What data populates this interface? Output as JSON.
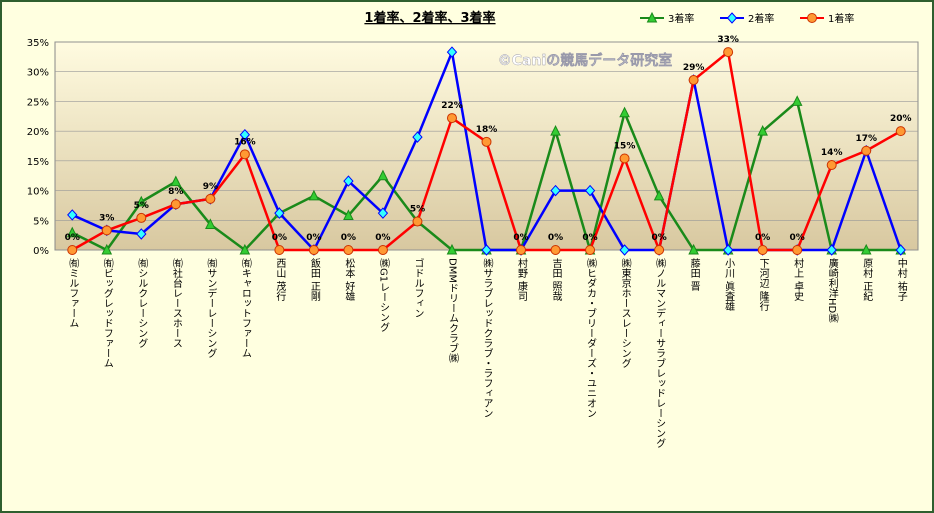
{
  "chart_data": {
    "type": "line",
    "title": "1着率、2着率、3着率",
    "annotation": "©Caniの競馬データ研究室",
    "categories": [
      "㈲ミルファーム",
      "㈲ビッグレッドファーム",
      "㈲シルクレーシング",
      "㈲社台レースホース",
      "㈲サンデーレーシング",
      "㈲キャロットファーム",
      "西山 茂行",
      "飯田 正剛",
      "松本 好雄",
      "㈱G1レーシング",
      "ゴドルフィン",
      "DMMドリームクラブ㈱",
      "㈱サラブレッドクラブ・ラフィアン",
      "村野 康司",
      "吉田 照哉",
      "㈱ヒダカ・ブリーダーズ・ユニオン",
      "㈱東京ホースレーシング",
      "㈱ノルマンディーサラブレッドレーシング",
      "藤田 晋",
      "小川 眞査雄",
      "下河辺 隆行",
      "村上 卓史",
      "廣崎利洋HD㈱",
      "原村 正紀",
      "中村 祐子"
    ],
    "series": [
      {
        "name": "3着率",
        "color": "#1a8a1a",
        "marker": "triangle",
        "values": [
          2.9,
          0,
          8.1,
          11.5,
          4.3,
          0,
          6.2,
          9.1,
          5.8,
          12.5,
          4.8,
          0,
          0,
          0,
          20,
          0,
          23.1,
          9.1,
          0,
          0,
          20,
          25,
          0,
          0,
          0
        ]
      },
      {
        "name": "2着率",
        "color": "#0000ff",
        "marker": "diamond",
        "values": [
          5.9,
          3.3,
          2.7,
          7.7,
          8.6,
          19.4,
          6.2,
          0,
          11.6,
          6.2,
          19,
          33.3,
          0,
          0,
          10,
          10,
          0,
          0,
          28.6,
          0,
          0,
          0,
          0,
          16.7,
          0
        ]
      },
      {
        "name": "1着率",
        "color": "#ff0000",
        "marker": "circle",
        "values": [
          0,
          3.3,
          5.4,
          7.7,
          8.6,
          16.1,
          0,
          0,
          0,
          0,
          4.8,
          22.2,
          18.2,
          0,
          0,
          0,
          15.4,
          0,
          28.6,
          33.3,
          0,
          0,
          14.3,
          16.7,
          20
        ],
        "value_labels": [
          "0%",
          "3%",
          "5%",
          "8%",
          "9%",
          "16%",
          "0%",
          "0%",
          "0%",
          "0%",
          "5%",
          "22%",
          "18%",
          "0%",
          "0%",
          "0%",
          "15%",
          "0%",
          "29%",
          "33%",
          "0%",
          "0%",
          "14%",
          "17%",
          "20%"
        ]
      }
    ],
    "ylim": [
      0,
      35
    ],
    "yticks": [
      {
        "value": 0,
        "label": "0%"
      },
      {
        "value": 5,
        "label": "5%"
      },
      {
        "value": 10,
        "label": "10%"
      },
      {
        "value": 15,
        "label": "15%"
      },
      {
        "value": 20,
        "label": "20%"
      },
      {
        "value": 25,
        "label": "25%"
      },
      {
        "value": 30,
        "label": "30%"
      },
      {
        "value": 35,
        "label": "35%"
      }
    ],
    "grid": true,
    "legend": "top-right"
  }
}
